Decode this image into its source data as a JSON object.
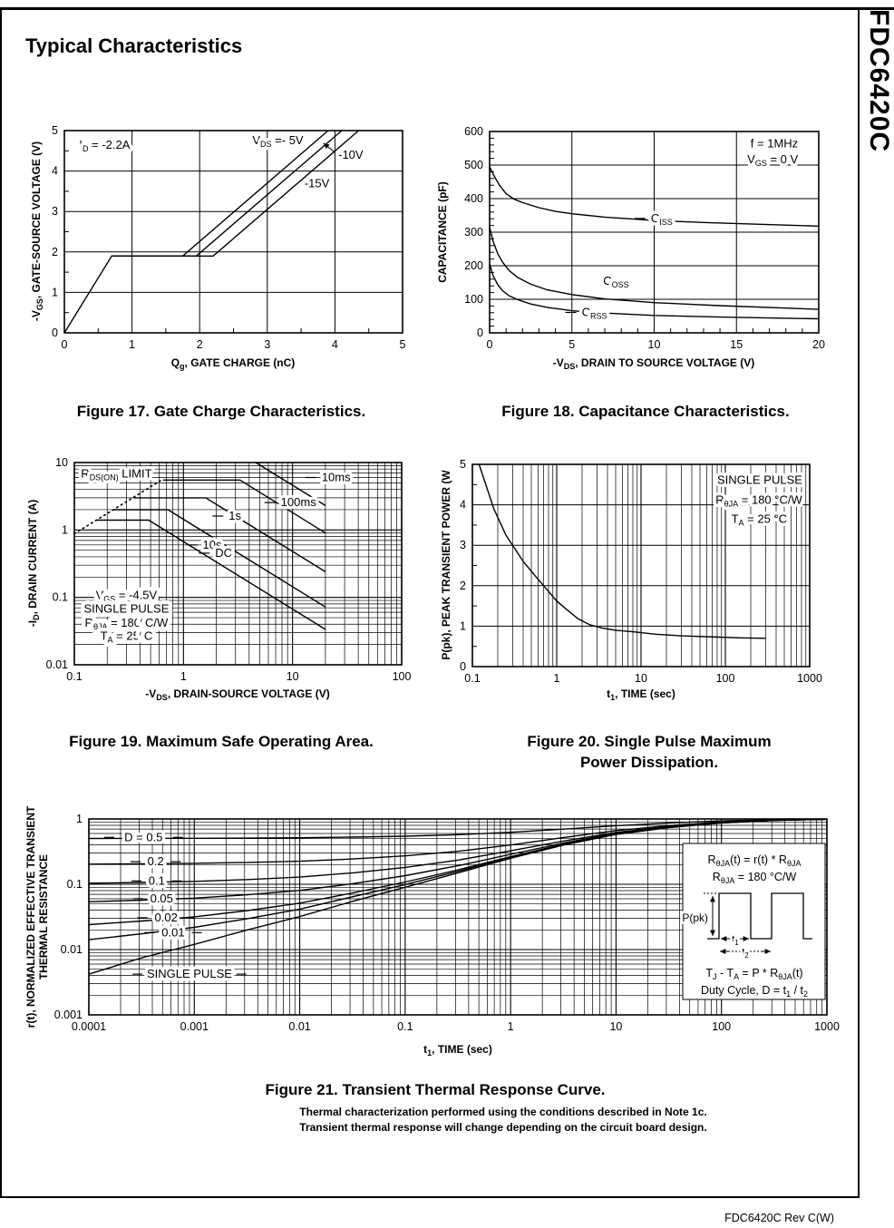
{
  "page": {
    "title": "Typical Characteristics",
    "side_tab": "FDC6420C",
    "footer": "FDC6420C Rev C(W)"
  },
  "captions": {
    "fig17": "Figure 17. Gate Charge Characteristics.",
    "fig18": "Figure 18. Capacitance Characteristics.",
    "fig19": "Figure 19. Maximum Safe Operating Area.",
    "fig20_line1": "Figure 20. Single Pulse Maximum",
    "fig20_line2": "Power Dissipation.",
    "fig21": "Figure 21. Transient Thermal Response Curve."
  },
  "notes": [
    "Thermal characterization performed using the conditions described in Note 1c.",
    "Transient thermal response will change depending on the circuit board design."
  ],
  "chart_data": [
    {
      "id": "fig17",
      "type": "line",
      "title": "Gate Charge Characteristics",
      "xlabel": "Q~g~, GATE CHARGE (nC)",
      "ylabel": "-V~GS~, GATE-SOURCE VOLTAGE (V)",
      "x": {
        "min": 0,
        "max": 5,
        "ticks": [
          0,
          1,
          2,
          3,
          4,
          5
        ],
        "minor": 0.5
      },
      "y": {
        "min": 0,
        "max": 5,
        "ticks": [
          0,
          1,
          2,
          3,
          4,
          5
        ],
        "minor": 0.5
      },
      "series": [
        {
          "name": "VDS = -5V",
          "points": [
            [
              0,
              0
            ],
            [
              0.7,
              1.9
            ],
            [
              1.75,
              1.9
            ],
            [
              3.9,
              5
            ]
          ]
        },
        {
          "name": "VDS = -10V",
          "points": [
            [
              0.7,
              1.9
            ],
            [
              1.95,
              1.9
            ],
            [
              4.1,
              5
            ]
          ]
        },
        {
          "name": "VDS = -15V",
          "points": [
            [
              0.7,
              1.9
            ],
            [
              2.2,
              1.9
            ],
            [
              4.35,
              5
            ]
          ]
        }
      ],
      "annotations": [
        {
          "text": "I~D~ = -2.2A",
          "x": 0.22,
          "y": 4.55,
          "anchor": "start"
        },
        {
          "text": "V~DS~ =- 5V",
          "x": 2.78,
          "y": 4.66,
          "anchor": "start"
        },
        {
          "text": "-10V",
          "x": 4.05,
          "y": 4.3,
          "anchor": "start"
        },
        {
          "text": "-15V",
          "x": 3.55,
          "y": 3.6,
          "anchor": "start"
        }
      ],
      "arrow": {
        "from": [
          4.0,
          4.46
        ],
        "to": [
          3.83,
          4.69
        ]
      }
    },
    {
      "id": "fig18",
      "type": "line",
      "title": "Capacitance Characteristics",
      "xlabel": "-V~DS~, DRAIN TO SOURCE VOLTAGE (V)",
      "ylabel": "CAPACITANCE (pF)",
      "x": {
        "min": 0,
        "max": 20,
        "ticks": [
          0,
          5,
          10,
          15,
          20
        ],
        "minor": 1
      },
      "y": {
        "min": 0,
        "max": 600,
        "ticks": [
          0,
          100,
          200,
          300,
          400,
          500,
          600
        ],
        "minor": 20
      },
      "series": [
        {
          "name": "CISS",
          "points": [
            [
              0,
              495
            ],
            [
              0.3,
              465
            ],
            [
              0.6,
              440
            ],
            [
              1,
              415
            ],
            [
              1.5,
              398
            ],
            [
              2,
              388
            ],
            [
              3,
              373
            ],
            [
              4,
              362
            ],
            [
              5,
              355
            ],
            [
              7,
              345
            ],
            [
              10,
              335
            ],
            [
              13,
              329
            ],
            [
              16,
              324
            ],
            [
              20,
              318
            ]
          ]
        },
        {
          "name": "COSS",
          "points": [
            [
              0,
              315
            ],
            [
              0.2,
              275
            ],
            [
              0.5,
              235
            ],
            [
              0.8,
              210
            ],
            [
              1.2,
              185
            ],
            [
              1.7,
              165
            ],
            [
              2.5,
              145
            ],
            [
              3.5,
              128
            ],
            [
              5,
              114
            ],
            [
              7,
              101
            ],
            [
              10,
              90
            ],
            [
              14,
              81
            ],
            [
              20,
              70
            ]
          ]
        },
        {
          "name": "CRSS",
          "points": [
            [
              0,
              205
            ],
            [
              0.2,
              172
            ],
            [
              0.5,
              143
            ],
            [
              0.8,
              125
            ],
            [
              1.2,
              110
            ],
            [
              1.7,
              99
            ],
            [
              2.5,
              86
            ],
            [
              3.5,
              76
            ],
            [
              5,
              66
            ],
            [
              7,
              59
            ],
            [
              10,
              52
            ],
            [
              14,
              47
            ],
            [
              20,
              42
            ]
          ]
        }
      ],
      "annotations": [
        {
          "text": "f = 1MHz",
          "x": 17.3,
          "y": 553,
          "anchor": "middle"
        },
        {
          "text": "V~GS~ = 0 V",
          "x": 17.2,
          "y": 505,
          "anchor": "middle"
        },
        {
          "text": "C~ISS~",
          "x": 9.8,
          "y": 330,
          "anchor": "start",
          "dash": "left"
        },
        {
          "text": "C~OSS~",
          "x": 6.9,
          "y": 143,
          "anchor": "start"
        },
        {
          "text": "C~RSS~",
          "x": 5.6,
          "y": 50,
          "anchor": "start",
          "dash": "left"
        }
      ]
    },
    {
      "id": "fig19",
      "type": "line",
      "title": "Maximum Safe Operating Area",
      "xlabel": "-V~DS~, DRAIN-SOURCE VOLTAGE (V)",
      "ylabel": "-I~D~, DRAIN CURRENT (A)",
      "x": {
        "min": 0.1,
        "max": 100,
        "scale": "log",
        "ticks": [
          0.1,
          1,
          10,
          100
        ],
        "tick_labels": [
          "0.1",
          "1",
          "10",
          "100"
        ]
      },
      "y": {
        "min": 0.01,
        "max": 10,
        "scale": "log",
        "ticks": [
          0.01,
          0.1,
          1,
          10
        ],
        "tick_labels": [
          "0.01",
          "0.1",
          "1",
          "10"
        ]
      },
      "series": [
        {
          "name": "RDS(ON) LIMIT",
          "style": "dotted",
          "points": [
            [
              0.1,
              0.88
            ],
            [
              0.63,
              5.5
            ]
          ]
        },
        {
          "name": "10ms",
          "points": [
            [
              4.6,
              10
            ],
            [
              20,
              2.3
            ]
          ]
        },
        {
          "name": "100ms",
          "points": [
            [
              0.65,
              5.5
            ],
            [
              3.3,
              5.5
            ],
            [
              20,
              0.9
            ]
          ]
        },
        {
          "name": "1s",
          "points": [
            [
              0.35,
              3.0
            ],
            [
              1.6,
              3.0
            ],
            [
              20,
              0.24
            ]
          ]
        },
        {
          "name": "10s",
          "points": [
            [
              0.23,
              2.0
            ],
            [
              0.72,
              2.0
            ],
            [
              20,
              0.072
            ]
          ]
        },
        {
          "name": "DC",
          "points": [
            [
              0.16,
              1.4
            ],
            [
              0.48,
              1.4
            ],
            [
              20,
              0.0335
            ]
          ]
        }
      ],
      "annotations": [
        {
          "text": "R~DS(ON)~ LIMIT",
          "x": 0.115,
          "y": 6.0,
          "anchor": "start"
        },
        {
          "text": "10ms",
          "x": 18.5,
          "y": 5.3,
          "anchor": "start",
          "dash": "left"
        },
        {
          "text": "100ms",
          "x": 7.8,
          "y": 2.25,
          "anchor": "start",
          "dash": "left"
        },
        {
          "text": "1s",
          "x": 2.6,
          "y": 1.42,
          "anchor": "start",
          "dash": "left"
        },
        {
          "text": "10s",
          "x": 1.5,
          "y": 0.53,
          "anchor": "start",
          "dash": "left"
        },
        {
          "text": "DC",
          "x": 1.95,
          "y": 0.4,
          "anchor": "start",
          "dash": "left"
        },
        {
          "text": "V~GS~ = -4.5V",
          "x": 0.3,
          "y": 0.094,
          "anchor": "middle",
          "halo": 9
        },
        {
          "text": "SINGLE PULSE",
          "x": 0.3,
          "y": 0.059,
          "anchor": "middle",
          "halo": 9
        },
        {
          "text": "R~θJA~ = 180^o^C/W",
          "x": 0.3,
          "y": 0.037,
          "anchor": "middle",
          "halo": 9
        },
        {
          "text": "T~A~ = 25^o^C",
          "x": 0.3,
          "y": 0.0235,
          "anchor": "middle",
          "halo": 9
        }
      ]
    },
    {
      "id": "fig20",
      "type": "line",
      "title": "Single Pulse Maximum Power Dissipation",
      "xlabel": "t~1~, TIME (sec)",
      "ylabel": "P(pk), PEAK TRANSIENT POWER (W",
      "x": {
        "min": 0.1,
        "max": 1000,
        "scale": "log",
        "ticks": [
          0.1,
          1,
          10,
          100,
          1000
        ],
        "tick_labels": [
          "0.1",
          "1",
          "10",
          "100",
          "1000"
        ]
      },
      "y": {
        "min": 0,
        "max": 5,
        "ticks": [
          0,
          1,
          2,
          3,
          4,
          5
        ],
        "minor": 0.5
      },
      "series": [
        {
          "name": "single pulse power",
          "points": [
            [
              0.12,
              5
            ],
            [
              0.18,
              3.9
            ],
            [
              0.25,
              3.25
            ],
            [
              0.3,
              3.0
            ],
            [
              0.4,
              2.6
            ],
            [
              0.55,
              2.25
            ],
            [
              0.7,
              2.0
            ],
            [
              1,
              1.62
            ],
            [
              1.3,
              1.42
            ],
            [
              1.8,
              1.18
            ],
            [
              2.5,
              1.03
            ],
            [
              3.5,
              0.95
            ],
            [
              5,
              0.9
            ],
            [
              8,
              0.86
            ],
            [
              15,
              0.8
            ],
            [
              30,
              0.76
            ],
            [
              60,
              0.74
            ],
            [
              150,
              0.71
            ],
            [
              300,
              0.7
            ]
          ]
        }
      ],
      "annotations": [
        {
          "text": "SINGLE PULSE",
          "x": 256,
          "y": 4.52,
          "anchor": "middle"
        },
        {
          "text": "R~θJA~ = 180 °C/W",
          "x": 250,
          "y": 4.02,
          "anchor": "middle"
        },
        {
          "text": "T~A~ = 25 °C",
          "x": 252,
          "y": 3.55,
          "anchor": "middle"
        }
      ]
    },
    {
      "id": "fig21",
      "type": "line",
      "title": "Transient Thermal Response Curve",
      "xlabel": "t~1~, TIME (sec)",
      "ylabel": "r(t), NORMALIZED EFFECTIVE TRANSIENT",
      "ylabel2": "THERMAL RESISTANCE",
      "x": {
        "min": 0.0001,
        "max": 1000,
        "scale": "log",
        "ticks": [
          0.0001,
          0.001,
          0.01,
          0.1,
          1,
          10,
          100,
          1000
        ],
        "tick_labels": [
          "0.0001",
          "0.001",
          "0.01",
          "0.1",
          "1",
          "10",
          "100",
          "1000"
        ]
      },
      "y": {
        "min": 0.001,
        "max": 1,
        "scale": "log",
        "ticks": [
          0.001,
          0.01,
          0.1,
          1
        ],
        "tick_labels": [
          "0.001",
          "0.01",
          "0.1",
          "1"
        ]
      },
      "duty_cycles": [
        0.5,
        0.2,
        0.1,
        0.05,
        0.02,
        0.01
      ],
      "single_pulse": [
        [
          0.0001,
          0.0042
        ],
        [
          0.00032,
          0.0075
        ],
        [
          0.001,
          0.012
        ],
        [
          0.0032,
          0.02
        ],
        [
          0.01,
          0.032
        ],
        [
          0.032,
          0.055
        ],
        [
          0.1,
          0.09
        ],
        [
          0.32,
          0.15
        ],
        [
          1,
          0.25
        ],
        [
          3.2,
          0.4
        ],
        [
          10,
          0.58
        ],
        [
          32,
          0.74
        ],
        [
          100,
          0.87
        ],
        [
          320,
          0.95
        ],
        [
          1000,
          0.99
        ]
      ],
      "annotations": [
        {
          "text": "D = 0.5",
          "x": 0.00033,
          "y": 0.46,
          "anchor": "middle",
          "dash": "both"
        },
        {
          "text": "0.2",
          "x": 0.00043,
          "y": 0.195,
          "anchor": "middle",
          "dash": "both"
        },
        {
          "text": "0.1",
          "x": 0.00044,
          "y": 0.099,
          "anchor": "middle",
          "dash": "both"
        },
        {
          "text": "0.05",
          "x": 0.00049,
          "y": 0.053,
          "anchor": "middle",
          "dash": "both"
        },
        {
          "text": "0.02",
          "x": 0.00054,
          "y": 0.027,
          "anchor": "middle",
          "dash": "both"
        },
        {
          "text": "0.01",
          "x": 0.00063,
          "y": 0.016,
          "anchor": "middle",
          "dash": "both"
        },
        {
          "text": "SINGLE PULSE",
          "x": 0.0009,
          "y": 0.0037,
          "anchor": "middle",
          "dash": "both"
        }
      ],
      "inset": {
        "line1": "R~θJA~(t) = r(t) * R~θJA~",
        "line2": "R~θJA~ = 180 °C/W",
        "ppk": "P(pk)",
        "t1": "t~1~",
        "t2": "t~2~",
        "line3": "T~J~ - T~A~ = P * R~θJA~(t)",
        "line4": "Duty Cycle, D = t~1~ / t~2~"
      }
    }
  ]
}
